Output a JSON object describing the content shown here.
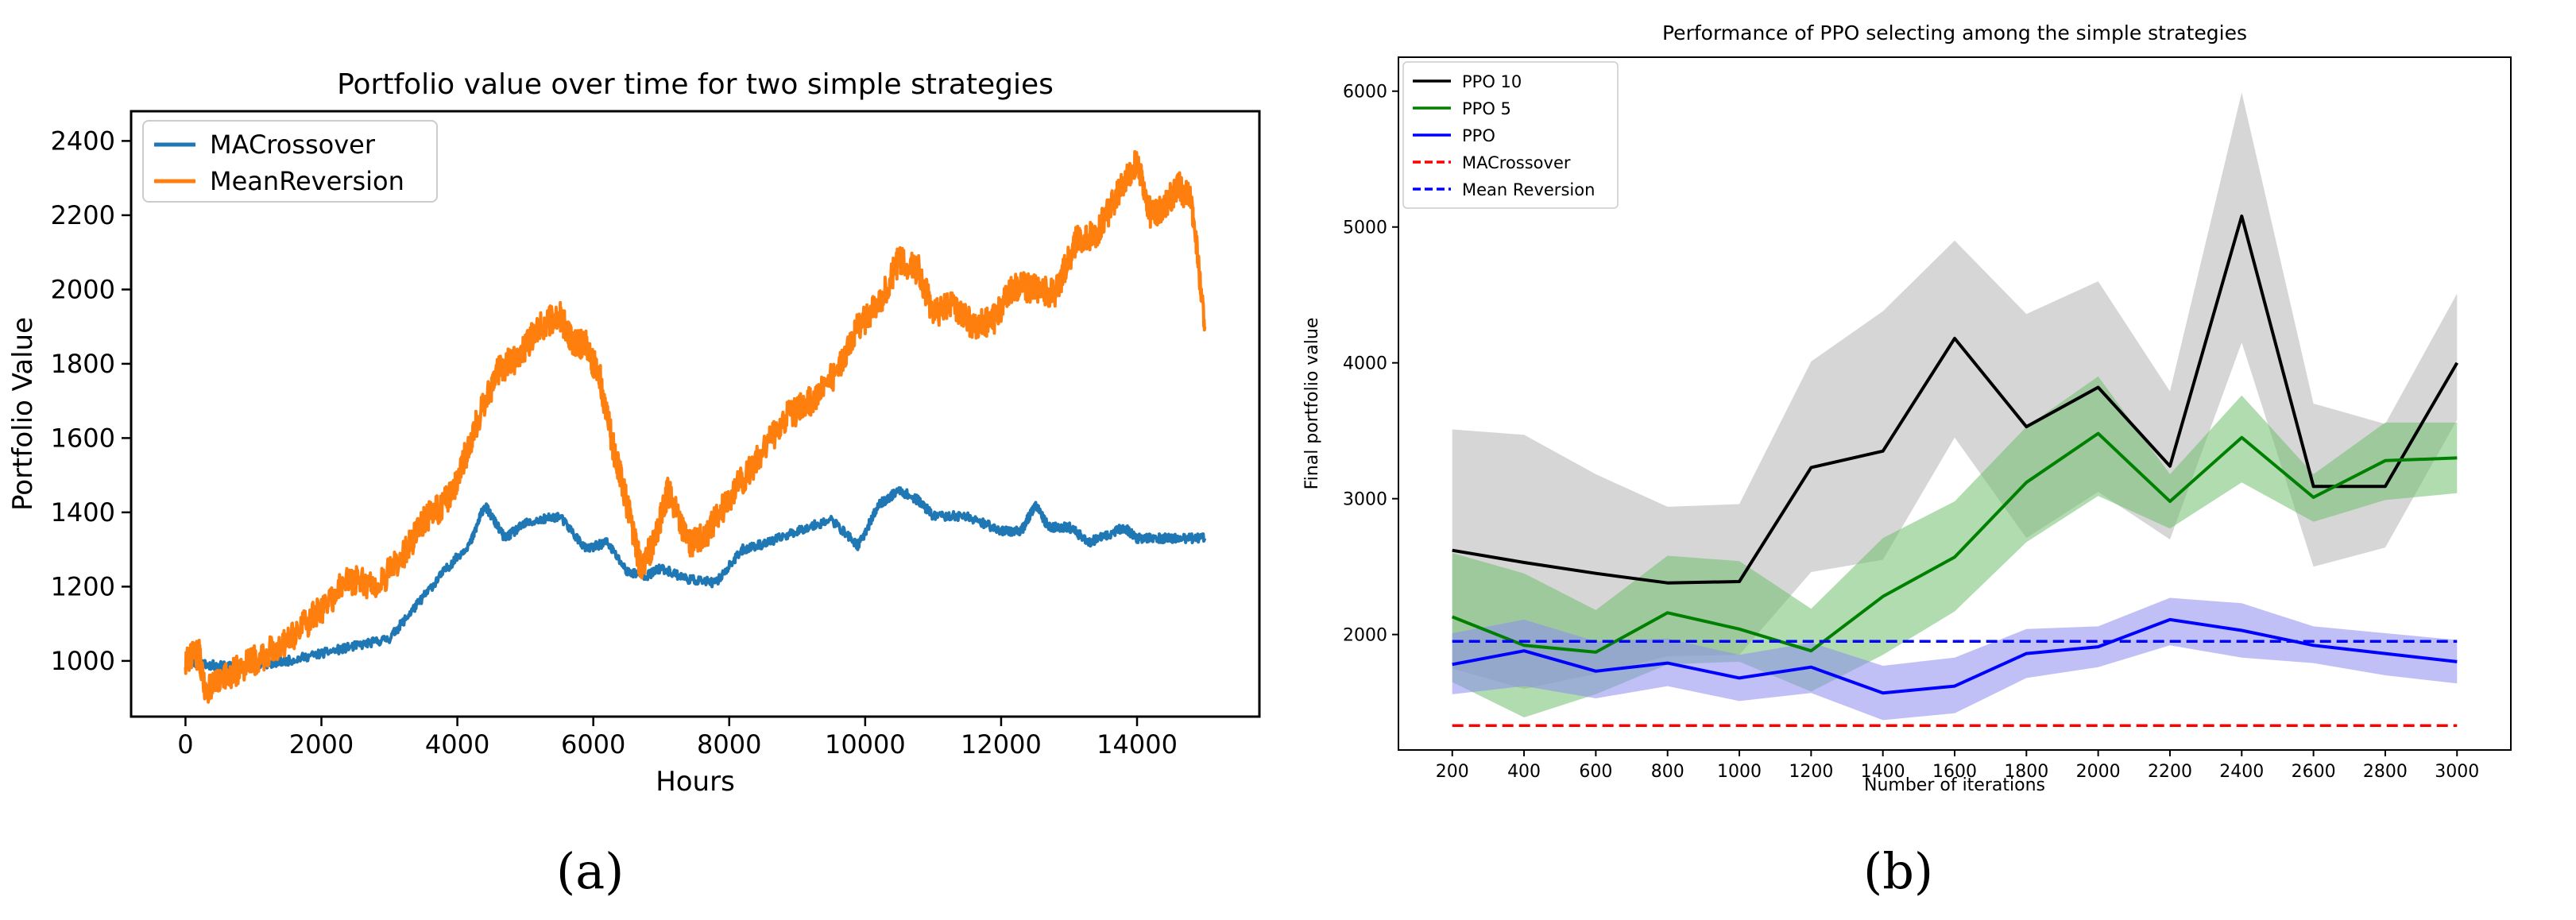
{
  "panel_labels": {
    "a": "(a)",
    "b": "(b)"
  },
  "colors": {
    "macrossover_a": "#1f77b4",
    "meanreversion_a": "#ff7f0e",
    "ppo10": "#000000",
    "ppo5": "#008000",
    "ppo": "#0000ff",
    "macross_b": "#ff0000",
    "meanrev_b": "#0000ff"
  },
  "chart_data": [
    {
      "type": "line",
      "title": "Portfolio value over time for two simple strategies",
      "xlabel": "Hours",
      "ylabel": "Portfolio Value",
      "xlim": [
        -800,
        15800
      ],
      "ylim": [
        850,
        2480
      ],
      "xticks": [
        0,
        2000,
        4000,
        6000,
        8000,
        10000,
        12000,
        14000
      ],
      "yticks": [
        1000,
        1200,
        1400,
        1600,
        1800,
        2000,
        2200,
        2400
      ],
      "legend_position": "upper-left",
      "series": [
        {
          "name": "MACrossover",
          "color": "#1f77b4",
          "noise": 12,
          "x": [
            0,
            300,
            600,
            1000,
            1500,
            2000,
            2500,
            3000,
            3400,
            3800,
            4200,
            4400,
            4700,
            5000,
            5500,
            5900,
            6200,
            6500,
            6800,
            7000,
            7400,
            7800,
            8200,
            8600,
            9000,
            9500,
            9900,
            10200,
            10500,
            10800,
            11000,
            11500,
            12000,
            12300,
            12500,
            12700,
            13000,
            13300,
            13600,
            13800,
            14000,
            14300,
            14600,
            15000
          ],
          "y": [
            1000,
            990,
            985,
            985,
            1000,
            1020,
            1040,
            1060,
            1150,
            1240,
            1320,
            1420,
            1330,
            1370,
            1390,
            1300,
            1320,
            1240,
            1230,
            1250,
            1220,
            1210,
            1300,
            1320,
            1350,
            1380,
            1310,
            1420,
            1460,
            1430,
            1390,
            1390,
            1350,
            1350,
            1420,
            1360,
            1360,
            1320,
            1340,
            1360,
            1330,
            1330,
            1330,
            1330
          ]
        },
        {
          "name": "MeanReversion",
          "color": "#ff7f0e",
          "noise": 40,
          "x": [
            0,
            200,
            300,
            500,
            800,
            1200,
            1600,
            2000,
            2400,
            2800,
            3200,
            3500,
            3800,
            4000,
            4300,
            4600,
            4900,
            5200,
            5500,
            5700,
            5900,
            6100,
            6300,
            6500,
            6700,
            6900,
            7100,
            7400,
            7700,
            8000,
            8400,
            8800,
            9200,
            9600,
            9900,
            10200,
            10500,
            10800,
            11000,
            11300,
            11600,
            11900,
            12200,
            12500,
            12800,
            13100,
            13400,
            13700,
            14000,
            14200,
            14400,
            14600,
            14800,
            15000
          ],
          "y": [
            1000,
            1020,
            920,
            940,
            980,
            1020,
            1070,
            1140,
            1220,
            1200,
            1280,
            1380,
            1420,
            1490,
            1650,
            1780,
            1820,
            1900,
            1930,
            1860,
            1850,
            1760,
            1570,
            1420,
            1250,
            1320,
            1460,
            1310,
            1350,
            1440,
            1540,
            1650,
            1700,
            1780,
            1900,
            1960,
            2080,
            2050,
            1930,
            1960,
            1900,
            1920,
            2010,
            2000,
            1990,
            2130,
            2150,
            2250,
            2350,
            2200,
            2220,
            2280,
            2240,
            1900
          ]
        }
      ]
    },
    {
      "type": "line",
      "title": "Performance of PPO selecting among the simple strategies",
      "xlabel": "Number of iterations",
      "ylabel": "Final portfolio value",
      "xlim": [
        50,
        3150
      ],
      "ylim": [
        1150,
        6250
      ],
      "xticks": [
        200,
        400,
        600,
        800,
        1000,
        1200,
        1400,
        1600,
        1800,
        2000,
        2200,
        2400,
        2600,
        2800,
        3000
      ],
      "yticks": [
        2000,
        3000,
        4000,
        5000,
        6000
      ],
      "legend_position": "upper-left",
      "x": [
        200,
        400,
        600,
        800,
        1000,
        1200,
        1400,
        1600,
        1800,
        2000,
        2200,
        2400,
        2600,
        2800,
        3000
      ],
      "series": [
        {
          "name": "PPO 10",
          "color": "#000000",
          "style": "solid",
          "values": [
            2620,
            2530,
            2450,
            2380,
            2390,
            3230,
            3350,
            4180,
            3530,
            3820,
            3240,
            5080,
            3090,
            3090,
            4000
          ],
          "lower": [
            1750,
            1600,
            1710,
            1840,
            1850,
            2460,
            2550,
            3450,
            2710,
            3050,
            2700,
            4150,
            2500,
            2640,
            3580
          ],
          "upper": [
            3510,
            3470,
            3180,
            2940,
            2960,
            4010,
            4380,
            4900,
            4360,
            4600,
            3790,
            5990,
            3700,
            3550,
            4510
          ],
          "band_color": "#b4b4b4"
        },
        {
          "name": "PPO 5",
          "color": "#008000",
          "style": "solid",
          "values": [
            2130,
            1920,
            1870,
            2160,
            2040,
            1880,
            2280,
            2570,
            3120,
            3480,
            2980,
            3450,
            3010,
            3280,
            3300
          ],
          "lower": [
            1650,
            1390,
            1560,
            1780,
            1800,
            1580,
            1850,
            2170,
            2680,
            3020,
            2780,
            3120,
            2830,
            2990,
            3040
          ],
          "upper": [
            2600,
            2450,
            2180,
            2580,
            2540,
            2190,
            2710,
            2980,
            3530,
            3900,
            3180,
            3760,
            3180,
            3560,
            3560
          ],
          "band_color": "#6fc06f"
        },
        {
          "name": "PPO",
          "color": "#0000ff",
          "style": "solid",
          "values": [
            1780,
            1880,
            1730,
            1790,
            1680,
            1760,
            1570,
            1620,
            1860,
            1910,
            2110,
            2030,
            1920,
            1860,
            1800
          ],
          "lower": [
            1560,
            1620,
            1530,
            1620,
            1510,
            1570,
            1370,
            1420,
            1680,
            1760,
            1920,
            1830,
            1790,
            1700,
            1640
          ],
          "upper": [
            2010,
            2110,
            1950,
            1970,
            1850,
            1940,
            1770,
            1830,
            2040,
            2060,
            2270,
            2230,
            2060,
            2010,
            1960
          ],
          "band_color": "#8c8cf0"
        },
        {
          "name": "MACrossover",
          "color": "#ff0000",
          "style": "dashed",
          "values": [
            1330,
            1330,
            1330,
            1330,
            1330,
            1330,
            1330,
            1330,
            1330,
            1330,
            1330,
            1330,
            1330,
            1330,
            1330
          ]
        },
        {
          "name": "Mean Reversion",
          "color": "#0000ff",
          "style": "dashed",
          "values": [
            1950,
            1950,
            1950,
            1950,
            1950,
            1950,
            1950,
            1950,
            1950,
            1950,
            1950,
            1950,
            1950,
            1950,
            1950
          ]
        }
      ]
    }
  ]
}
